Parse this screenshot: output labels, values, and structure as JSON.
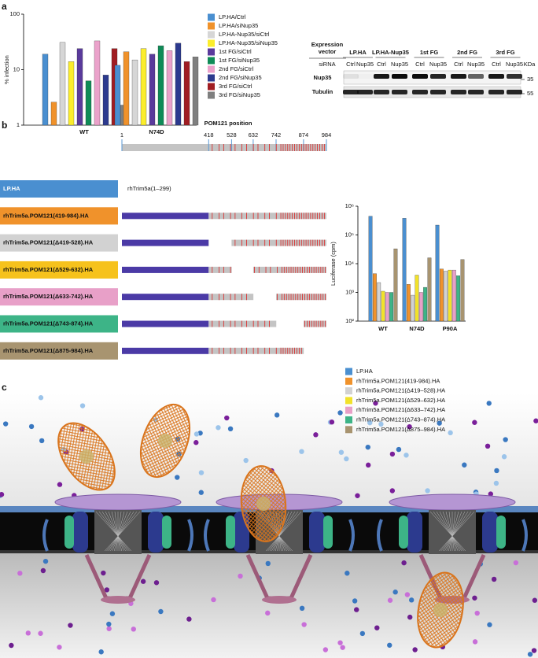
{
  "panel_labels": [
    "a",
    "b",
    "c"
  ],
  "chart_data": [
    {
      "type": "bar",
      "y_label": "% infection",
      "categories": [
        "WT",
        "N74D"
      ],
      "log_scale": true,
      "ylim": [
        1,
        100
      ],
      "yticks": [
        1,
        10,
        100
      ],
      "series": [
        {
          "name": "LP.HA/Ctrl",
          "color": "#4a8fd0",
          "values": [
            19,
            12
          ]
        },
        {
          "name": "LP.HA/siNup35",
          "color": "#f0922b",
          "values": [
            2.6,
            21
          ]
        },
        {
          "name": "LP.HA-Nup35/siCtrl",
          "color": "#d6d6d6",
          "values": [
            31,
            15
          ]
        },
        {
          "name": "LP.HA-Nup35/siNup35",
          "color": "#fbed2c",
          "values": [
            14,
            24
          ]
        },
        {
          "name": "1st FG/siCtrl",
          "color": "#5a3a9c",
          "values": [
            24,
            19
          ]
        },
        {
          "name": "1st FG/siNup35",
          "color": "#0f8b57",
          "values": [
            6.3,
            27
          ]
        },
        {
          "name": "2nd FG/siCtrl",
          "color": "#eba2cb",
          "values": [
            33,
            22
          ]
        },
        {
          "name": "2nd FG/siNup35",
          "color": "#2c3a8e",
          "values": [
            8,
            30
          ]
        },
        {
          "name": "3rd FG/siCtrl",
          "color": "#a01d22",
          "values": [
            24,
            14
          ]
        },
        {
          "name": "3rd FG/siNup35",
          "color": "#7f7f7f",
          "values": [
            2.3,
            17
          ]
        }
      ]
    },
    {
      "type": "bar",
      "y_label": "Luciferase (cpm)",
      "categories": [
        "WT",
        "N74D",
        "P90A"
      ],
      "log_scale": true,
      "ylim": [
        100,
        1000000
      ],
      "yticks": [
        {
          "value": 100,
          "label": "10²"
        },
        {
          "value": 1000,
          "label": "10³"
        },
        {
          "value": 10000,
          "label": "10⁴"
        },
        {
          "value": 100000,
          "label": "10⁵"
        },
        {
          "value": 1000000,
          "label": "10⁶"
        }
      ],
      "series": [
        {
          "name": "LP.HA",
          "color": "#4a8fd0",
          "values": [
            450000,
            380000,
            220000
          ]
        },
        {
          "name": "rhTrim5a.POM121(419-984).HA",
          "color": "#f0922b",
          "values": [
            4500,
            1900,
            6500
          ]
        },
        {
          "name": "rhTrim5a.POM121(Δ419–528).HA",
          "color": "#d2d2d2",
          "values": [
            2200,
            800,
            5500
          ]
        },
        {
          "name": "rhTrim5a.POM121(Δ529–632).HA",
          "color": "#f2e22a",
          "values": [
            1100,
            4000,
            6000
          ]
        },
        {
          "name": "rhTrim5a.POM121(Δ633–742).HA",
          "color": "#e8a0c8",
          "values": [
            1000,
            1000,
            6000
          ]
        },
        {
          "name": "rhTrim5a.POM121(Δ743–874).HA",
          "color": "#3db487",
          "values": [
            1000,
            1500,
            3800
          ]
        },
        {
          "name": "rhTrim5a.POM121(Δ875–984).HA",
          "color": "#a89470",
          "values": [
            33000,
            16000,
            14000
          ]
        }
      ]
    }
  ],
  "blot": {
    "header": [
      "Expression",
      "vector"
    ],
    "sirna_label": "siRNA",
    "groups": [
      "LP.HA",
      "LP.HA-Nup35",
      "1st FG",
      "2nd FG",
      "3rd FG"
    ],
    "lanes": [
      "Ctrl",
      "Nup35",
      "Ctrl",
      "Nup35",
      "Ctrl",
      "Nup35",
      "Ctrl",
      "Nup35",
      "Ctrl",
      "Nup35"
    ],
    "rows": [
      "Nup35",
      "Tubulin"
    ],
    "unit": "KDa",
    "markers": [
      "35",
      "55"
    ]
  },
  "diagram": {
    "title": "POM121 position",
    "positions": [
      1,
      418,
      528,
      632,
      742,
      874,
      984
    ],
    "trim_label": "rhTrim5a(1–299)",
    "constructs": [
      {
        "label": "LP.HA",
        "color": "#4a8fd0"
      },
      {
        "label": "rhTrim5a.POM121(419-984).HA",
        "color": "#f0922b"
      },
      {
        "label": "rhTrim5a.POM121(Δ419-528).HA",
        "color": "#d2d2d2"
      },
      {
        "label": "rhTrim5a.POM121(Δ529-632).HA",
        "color": "#f6c21c"
      },
      {
        "label": "rhTrim5a.POM121(Δ633-742).HA",
        "color": "#e8a0c8"
      },
      {
        "label": "rhTrim5a.POM121(Δ743-874).HA",
        "color": "#3db487"
      },
      {
        "label": "rhTrim5a.POM121(Δ875-984).HA",
        "color": "#a89470"
      }
    ]
  }
}
